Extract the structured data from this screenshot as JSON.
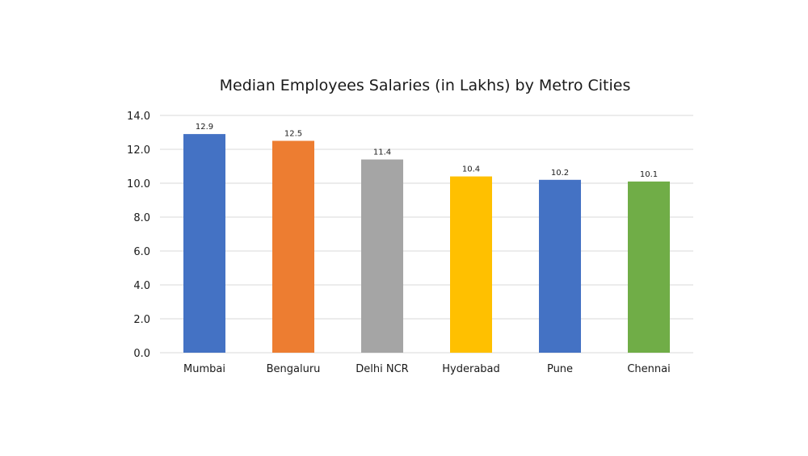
{
  "chart_data": {
    "type": "bar",
    "title": "Median Employees Salaries (in Lakhs) by Metro Cities",
    "xlabel": "",
    "ylabel": "",
    "ylim": [
      0,
      14
    ],
    "yticks": [
      "0.0",
      "2.0",
      "4.0",
      "6.0",
      "8.0",
      "10.0",
      "12.0",
      "14.0"
    ],
    "grid": true,
    "legend": "none",
    "categories": [
      "Mumbai",
      "Bengaluru",
      "Delhi NCR",
      "Hyderabad",
      "Pune",
      "Chennai"
    ],
    "values": [
      12.9,
      12.5,
      11.4,
      10.4,
      10.2,
      10.1
    ],
    "data_labels": [
      "12.9",
      "12.5",
      "11.4",
      "10.4",
      "10.2",
      "10.1"
    ],
    "colors": [
      "#4472C4",
      "#ED7D31",
      "#A5A5A5",
      "#FFC000",
      "#4472C4",
      "#70AD47"
    ]
  }
}
